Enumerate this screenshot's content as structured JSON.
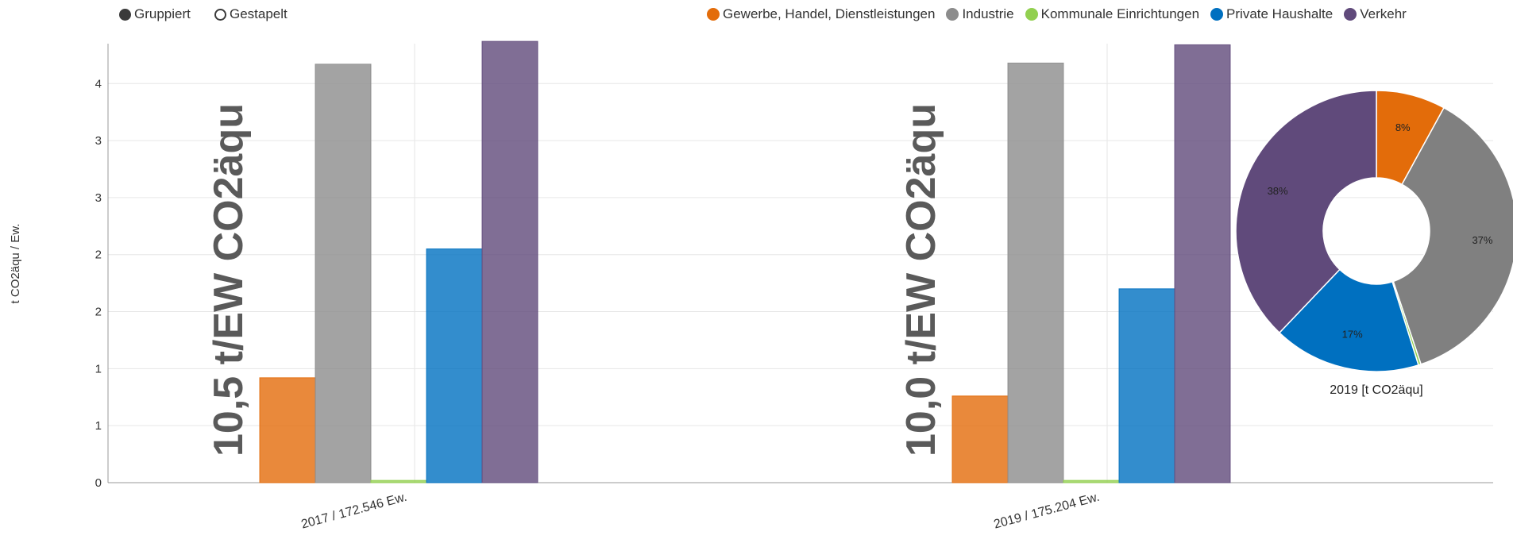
{
  "controls": {
    "grouped_label": "Gruppiert",
    "stacked_label": "Gestapelt"
  },
  "legend": [
    {
      "label": "Gewerbe, Handel, Dienstleistungen",
      "color": "#e36c0a"
    },
    {
      "label": "Industrie",
      "color": "#8c8c8c"
    },
    {
      "label": "Kommunale Einrichtungen",
      "color": "#92d050"
    },
    {
      "label": "Private Haushalte",
      "color": "#0070c0"
    },
    {
      "label": "Verkehr",
      "color": "#604a7b"
    }
  ],
  "chart_data": [
    {
      "type": "bar",
      "ylabel": "t CO2äqu / Ew.",
      "ylim": [
        0,
        3.85
      ],
      "ytick_values": [
        0,
        0.5,
        1,
        1.5,
        2,
        2.5,
        3,
        3.5
      ],
      "ytick_labels": [
        "0",
        "1",
        "1",
        "2",
        "2",
        "3",
        "3",
        "4"
      ],
      "grid": true,
      "categories": [
        "2017 / 172.546 Ew.",
        "2019 / 175.204 Ew."
      ],
      "series": [
        {
          "name": "Gewerbe, Handel, Dienstleistungen",
          "color": "#e36c0a",
          "values": [
            0.92,
            0.76
          ]
        },
        {
          "name": "Industrie",
          "color": "#8c8c8c",
          "values": [
            3.67,
            3.68
          ]
        },
        {
          "name": "Kommunale Einrichtungen",
          "color": "#92d050",
          "values": [
            0.02,
            0.02
          ]
        },
        {
          "name": "Private Haushalte",
          "color": "#0070c0",
          "values": [
            2.05,
            1.7
          ]
        },
        {
          "name": "Verkehr",
          "color": "#604a7b",
          "values": [
            3.87,
            3.84
          ]
        }
      ],
      "annotations": [
        "10,5 t/EW CO2äqu",
        "10,0 t/EW CO2äqu"
      ]
    },
    {
      "type": "pie",
      "title": "2019 [t CO2äqu]",
      "donut": true,
      "slices": [
        {
          "name": "Gewerbe, Handel, Dienstleistungen",
          "value": 8,
          "label": "8%",
          "color": "#e36c0a"
        },
        {
          "name": "Industrie",
          "value": 37,
          "label": "37%",
          "color": "#808080"
        },
        {
          "name": "Kommunale Einrichtungen",
          "value": 0.3,
          "label": "",
          "color": "#92d050"
        },
        {
          "name": "Private Haushalte",
          "value": 17,
          "label": "17%",
          "color": "#0070c0"
        },
        {
          "name": "Verkehr",
          "value": 38,
          "label": "38%",
          "color": "#604a7b"
        }
      ]
    }
  ]
}
